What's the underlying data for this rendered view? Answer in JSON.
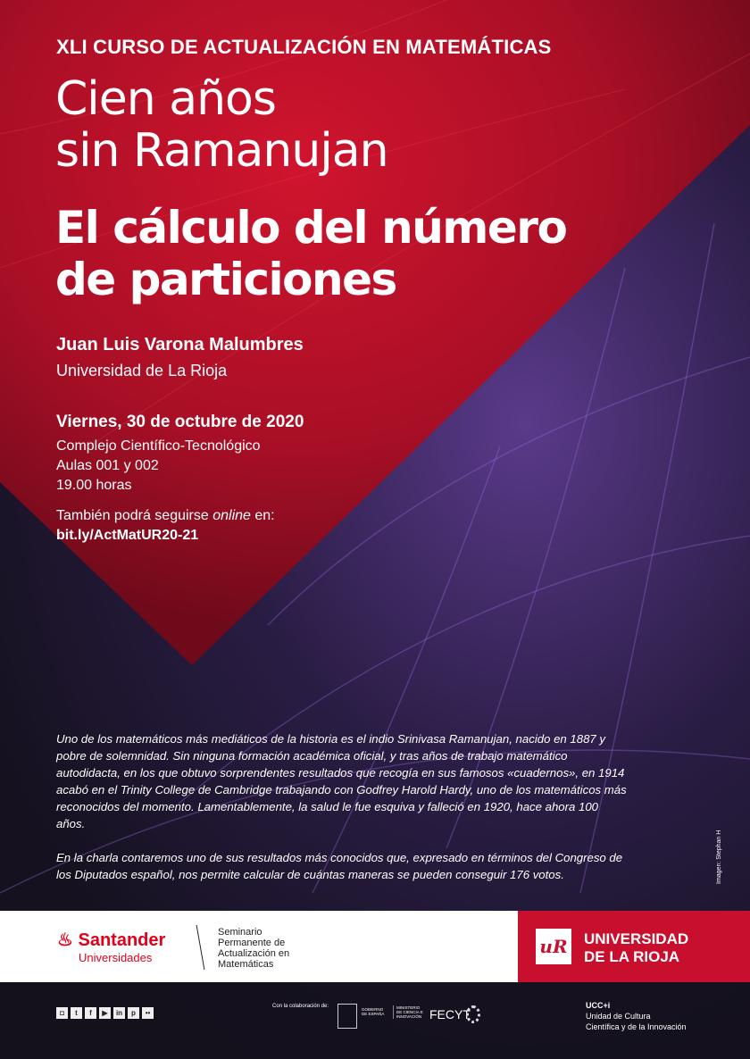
{
  "colors": {
    "red": "#c8102e",
    "dark": "#15111f",
    "purple": "#7a4fc2"
  },
  "kicker": "XLI CURSO DE ACTUALIZACIÓN EN MATEMÁTICAS",
  "title_lines": [
    "Cien años",
    "sin Ramanujan"
  ],
  "subtitle_lines": [
    "El cálculo del número",
    "de particiones"
  ],
  "author": "Juan Luis Varona Malumbres",
  "affiliation": "Universidad de La Rioja",
  "date": "Viernes, 30 de octubre de 2020",
  "venue_lines": [
    "Complejo Científico-Tecnológico",
    "Aulas 001 y 002",
    "19.00 horas"
  ],
  "online_prefix": "También podrá seguirse ",
  "online_em": "online",
  "online_suffix": " en:",
  "link": "bit.ly/ActMatUR20-21",
  "description": [
    "Uno de los matemáticos más mediáticos de la historia es el indio Srinivasa Ramanujan, nacido en 1887 y pobre de solemnidad. Sin ninguna formación académica oficial, y tras años de trabajo matemático autodidacta, en los que obtuvo sorprendentes resultados que recogía en sus famosos «cuadernos», en 1914 acabó en el Trinity College de Cambridge trabajando con Godfrey Harold Hardy, uno de los matemáticos más reconocidos del momento. Lamentablemente, la salud le fue esquiva y falleció en 1920, hace ahora 100 años.",
    "En la charla contaremos uno de sus resultados más conocidos que, expresado en términos del Congreso de los Diputados español, nos permite calcular de cuántas maneras se pueden conseguir 176 votos."
  ],
  "image_credit": "Imagen: Stephan H",
  "sponsors": {
    "santander": "Santander",
    "santander_sub": "Universidades",
    "seminario_lines": [
      "Seminario",
      "Permanente de",
      "Actualización en",
      "Matemáticas"
    ],
    "ur_line1": "UNIVERSIDAD",
    "ur_line2": "DE LA RIOJA"
  },
  "footer": {
    "social_icons": [
      "instagram",
      "twitter",
      "facebook",
      "youtube",
      "linkedin",
      "pinterest",
      "flickr"
    ],
    "collab": "Con la colaboración de:",
    "gov": "GOBIERNO DE ESPAÑA",
    "ministry": "MINISTERIO DE CIENCIA E INNOVACIÓN",
    "fecyt": "FECYT",
    "ucci": "UCC+i",
    "ucci_lines": [
      "Unidad de Cultura",
      "Científica y de la Innovación"
    ]
  }
}
